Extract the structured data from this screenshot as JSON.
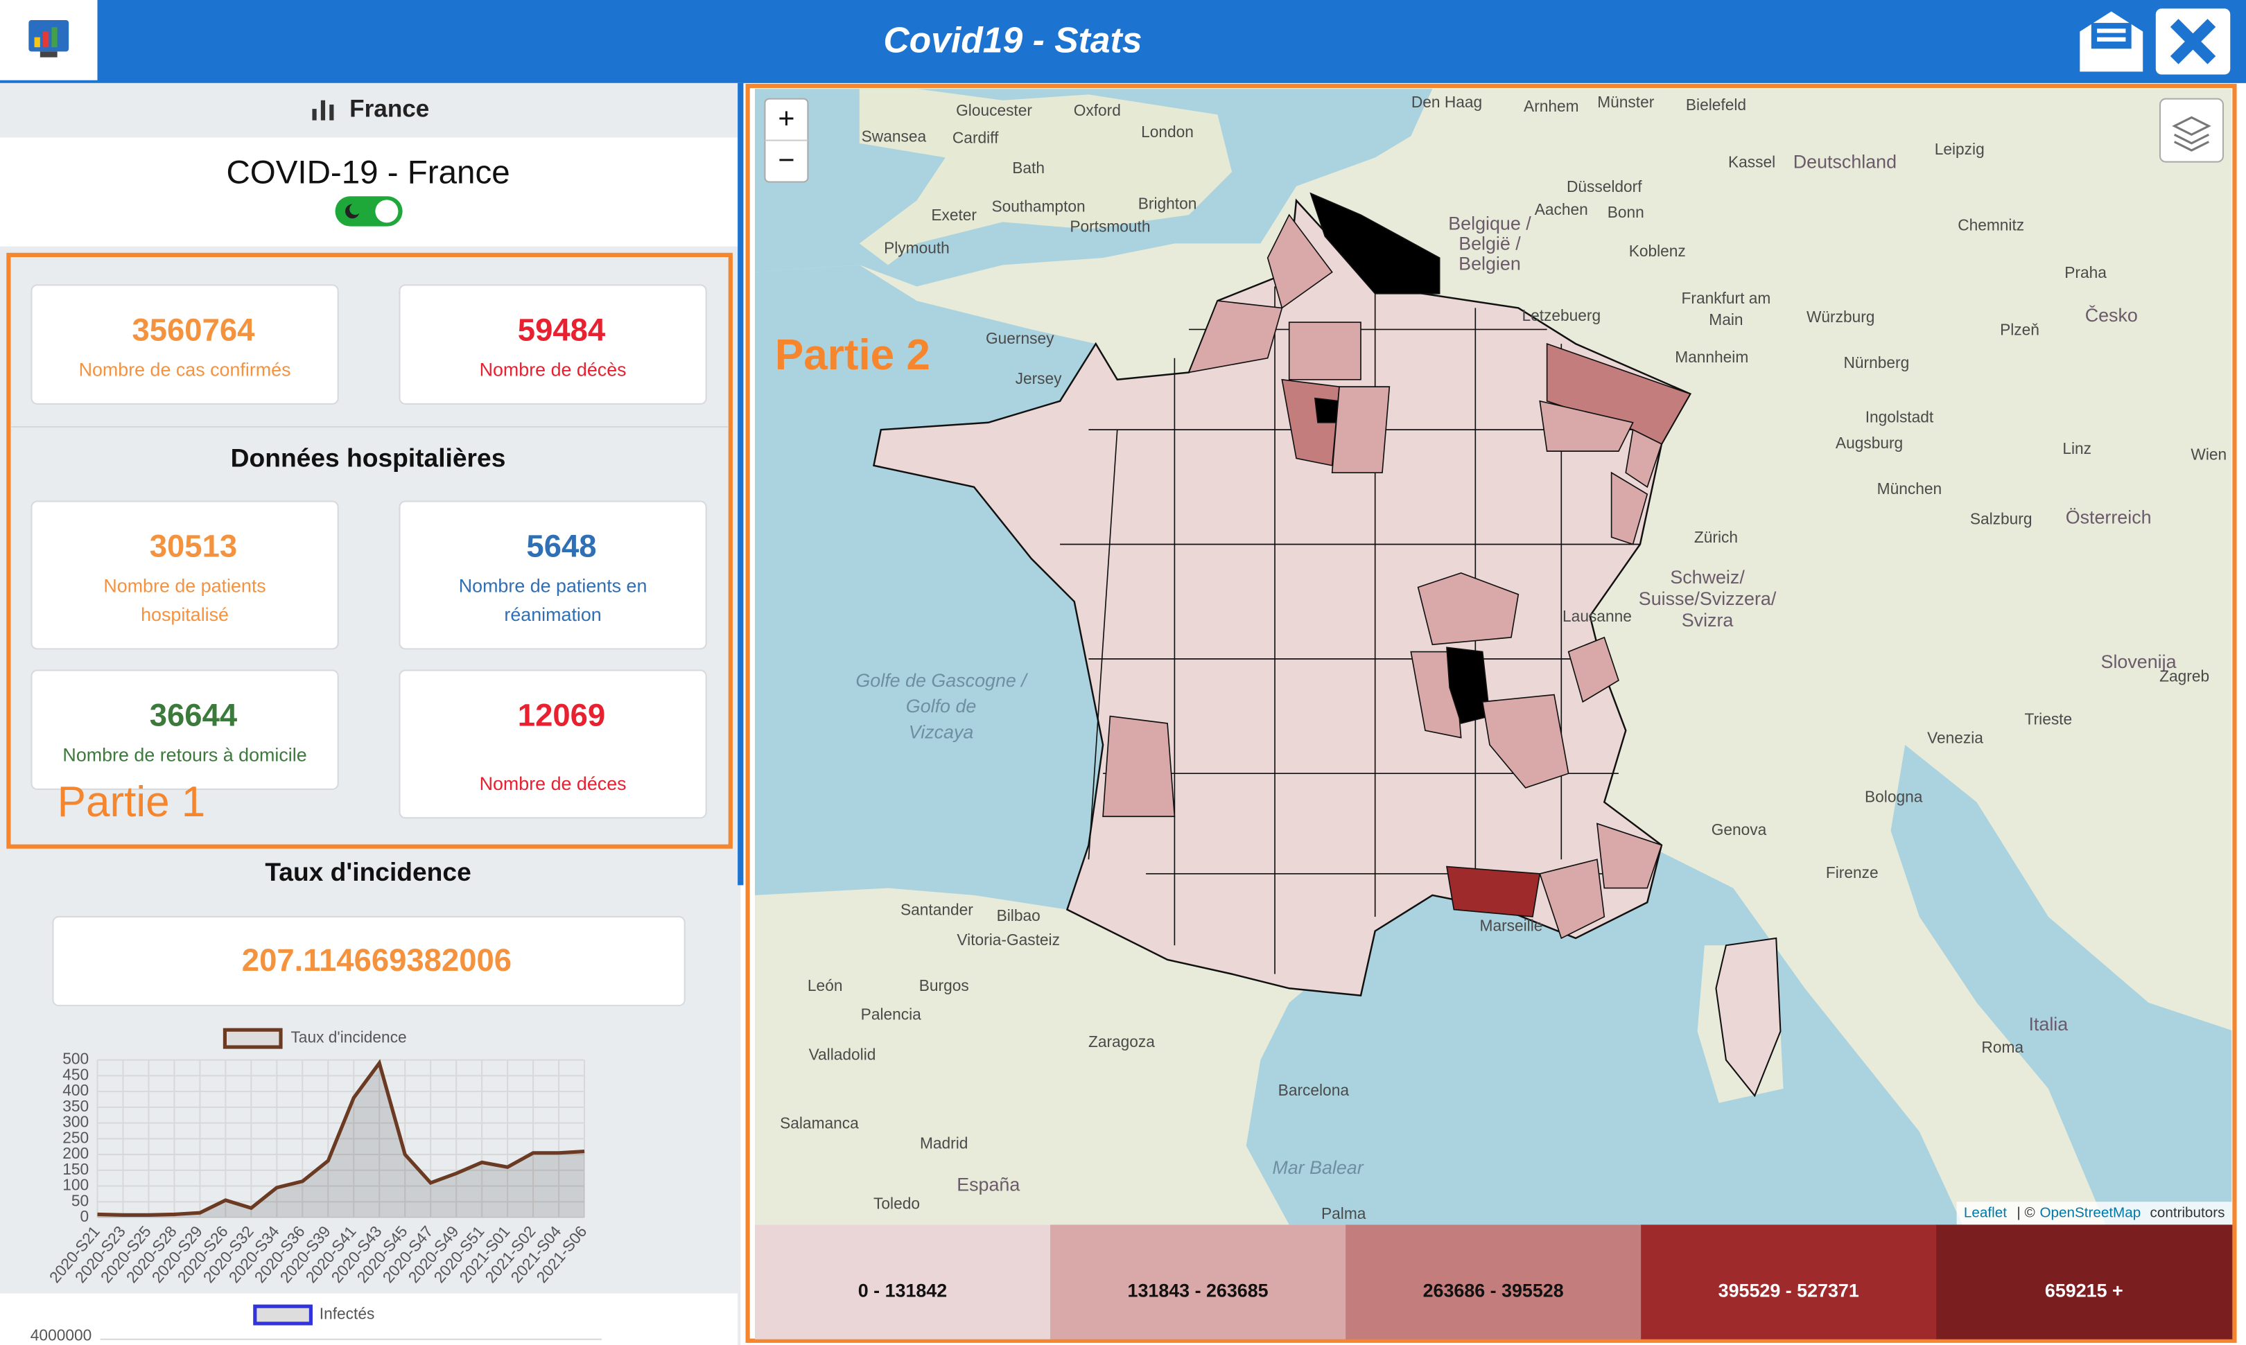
{
  "header": {
    "title": "Covid19 - Stats"
  },
  "sidebar": {
    "tab": "France",
    "heading": "COVID-19 - France",
    "stats": [
      {
        "value": 3560764,
        "label": "Nombre de cas confirmés"
      },
      {
        "value": 59484,
        "label": "Nombre de décès"
      }
    ],
    "hospital_title": "Données hospitalières",
    "hospital_stats": [
      {
        "value": 30513,
        "label": [
          "Nombre de patients",
          "hospitalisé"
        ]
      },
      {
        "value": 5648,
        "label": [
          "Nombre de patients en",
          "réanimation"
        ]
      },
      {
        "value": 36644,
        "label": [
          "Nombre de retours à domicile"
        ]
      },
      {
        "value": 12069,
        "label": [
          "Nombre de déces"
        ]
      }
    ],
    "annotation": "Partie 1"
  },
  "incidence": {
    "title": "Taux d'incidence",
    "value": 207.114669382006,
    "chart": {
      "type": "line",
      "legend": "Taux d'incidence",
      "color": "#6b3a22",
      "categories": [
        "2020-S21",
        "2020-S23",
        "2020-S25",
        "2020-S28",
        "2020-S29",
        "2020-S26",
        "2020-S32",
        "2020-S34",
        "2020-S36",
        "2020-S39",
        "2020-S41",
        "2020-S43",
        "2020-S45",
        "2020-S47",
        "2020-S49",
        "2020-S51",
        "2021-S01",
        "2021-S02",
        "2021-S04",
        "2021-S06"
      ],
      "values": [
        10,
        8,
        8,
        10,
        15,
        55,
        30,
        95,
        115,
        180,
        380,
        490,
        200,
        110,
        140,
        175,
        160,
        205,
        205,
        210
      ],
      "ylim": [
        0,
        500
      ],
      "yticks": [
        0,
        50,
        100,
        150,
        200,
        250,
        300,
        350,
        400,
        450,
        500
      ],
      "grid": true
    }
  },
  "infected_chart": {
    "legend": "Infectés",
    "color": "#3333dd",
    "yticks": [
      4000000
    ]
  },
  "map": {
    "annotation": "Partie 2",
    "zoom_in": "+",
    "zoom_out": "−",
    "attribution": [
      "Leaflet",
      "| ©",
      "OpenStreetMap",
      "contributors"
    ],
    "places": [
      "Den Haag",
      "Arnhem",
      "Münster",
      "Bielefeld",
      "Gloucester",
      "Oxford",
      "London",
      "Cardiff",
      "Swansea",
      "Bath",
      "Brighton",
      "Southampton",
      "Portsmouth",
      "Exeter",
      "Plymouth",
      "Düsseldorf",
      "Aachen",
      "Bonn",
      "Koblenz",
      "Belgique /",
      "België /",
      "Belgien",
      "Letzebuerg",
      "Guernsey",
      "Jersey",
      "Frankfurt am",
      "Main",
      "Würzburg",
      "Mannheim",
      "Nürnberg",
      "Ingolstadt",
      "Augsburg",
      "München",
      "Salzburg",
      "Leipzig",
      "Kassel",
      "Deutschland",
      "Chemnitz",
      "Praha",
      "Česko",
      "Plzeň",
      "Linz",
      "Wien",
      "Österreich",
      "Zürich",
      "Schweiz/",
      "Suisse/Svizzera/",
      "Svizra",
      "Lausanne",
      "Golfe de Gascogne /",
      "Golfo de",
      "Vizcaya",
      "Bologna",
      "Venezia",
      "Genova",
      "Firenze",
      "Italia",
      "Roma",
      "Slovenija",
      "Zagreb",
      "Trieste",
      "Madrid",
      "Zaragoza",
      "Barcelona",
      "Burgos",
      "León",
      "Valladolid",
      "Palencia",
      "Salamanca",
      "Santander",
      "Bilbao",
      "Vitoria-Gasteiz",
      "España",
      "Toledo",
      "Marseille",
      "Mar Balear",
      "Palma"
    ],
    "legend": [
      {
        "label": "0 - 131842",
        "color": "#ead6d6"
      },
      {
        "label": "131843 - 263685",
        "color": "#d9a9a9"
      },
      {
        "label": "263686 - 395528",
        "color": "#c47d7d"
      },
      {
        "label": "395529 - 527371",
        "color": "#9e2a2b"
      },
      {
        "label": "659215 +",
        "color": "#7a1e1f"
      }
    ]
  }
}
